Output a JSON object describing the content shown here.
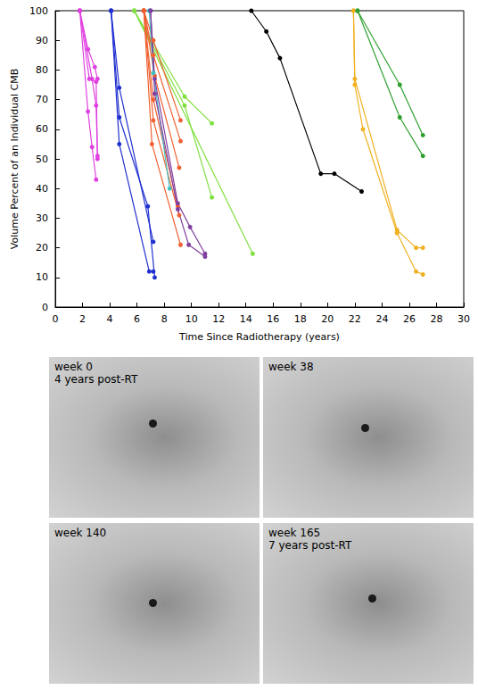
{
  "chart_data": {
    "type": "line",
    "x_label": "Time Since Radiotherapy (years)",
    "y_label": "Volume Percent of an Individual CMB",
    "xlim": [
      0,
      30
    ],
    "xticks": [
      0,
      2,
      4,
      6,
      8,
      10,
      12,
      14,
      16,
      18,
      20,
      22,
      24,
      26,
      28,
      30
    ],
    "ylim": [
      0,
      100
    ],
    "yticks": [
      0,
      10,
      20,
      30,
      40,
      50,
      60,
      70,
      80,
      90,
      100
    ],
    "grid": false,
    "marker": "circle",
    "series": [
      {
        "color": "#e040e0",
        "x": [
          1.8,
          2.4,
          2.9,
          3.1
        ],
        "values": [
          100,
          87,
          81,
          77
        ]
      },
      {
        "color": "#e040e0",
        "x": [
          1.8,
          2.5,
          3.0,
          3.1
        ],
        "values": [
          100,
          77,
          76,
          51
        ]
      },
      {
        "color": "#e040e0",
        "x": [
          1.8,
          2.4,
          2.7,
          3.0
        ],
        "values": [
          100,
          66,
          54,
          43
        ]
      },
      {
        "color": "#e040e0",
        "x": [
          1.8,
          2.7,
          3.0,
          3.1
        ],
        "values": [
          100,
          77,
          68,
          50
        ]
      },
      {
        "color": "#2030d0",
        "x": [
          4.1,
          4.7,
          7.2
        ],
        "values": [
          100,
          74,
          22
        ]
      },
      {
        "color": "#2030d0",
        "x": [
          4.1,
          4.7,
          6.8,
          7.3
        ],
        "values": [
          100,
          64,
          34,
          10
        ]
      },
      {
        "color": "#2030d0",
        "x": [
          4.1,
          4.7,
          6.9,
          7.2
        ],
        "values": [
          100,
          55,
          12,
          12
        ]
      },
      {
        "color": "#80e040",
        "x": [
          5.8,
          9.5,
          11.5
        ],
        "values": [
          100,
          71,
          62
        ]
      },
      {
        "color": "#80e040",
        "x": [
          5.8,
          9.5,
          11.5
        ],
        "values": [
          100,
          68,
          37
        ]
      },
      {
        "color": "#80e040",
        "x": [
          5.8,
          14.5
        ],
        "values": [
          100,
          18
        ]
      },
      {
        "color": "#f06030",
        "x": [
          6.5,
          7.2,
          9.2
        ],
        "values": [
          100,
          90,
          63
        ]
      },
      {
        "color": "#f06030",
        "x": [
          6.5,
          7.2,
          9.2
        ],
        "values": [
          100,
          85,
          56
        ]
      },
      {
        "color": "#f06030",
        "x": [
          6.5,
          7.3,
          9.1
        ],
        "values": [
          100,
          78,
          47
        ]
      },
      {
        "color": "#f06030",
        "x": [
          6.5,
          7.2,
          9.0
        ],
        "values": [
          100,
          70,
          34
        ]
      },
      {
        "color": "#f06030",
        "x": [
          6.5,
          7.2,
          9.1
        ],
        "values": [
          100,
          63,
          31
        ]
      },
      {
        "color": "#f06030",
        "x": [
          6.5,
          7.1,
          9.2
        ],
        "values": [
          100,
          55,
          21
        ]
      },
      {
        "color": "#40c0c0",
        "x": [
          6.9,
          7.2,
          8.4
        ],
        "values": [
          100,
          79,
          40
        ]
      },
      {
        "color": "#8040a0",
        "x": [
          7.0,
          7.3,
          9.0,
          9.9,
          11.0
        ],
        "values": [
          100,
          77,
          35,
          27,
          18
        ]
      },
      {
        "color": "#8040a0",
        "x": [
          7.0,
          7.3,
          9.0,
          9.8,
          11.0
        ],
        "values": [
          100,
          72,
          33,
          21,
          17
        ]
      },
      {
        "color": "#000000",
        "x": [
          14.4,
          15.5,
          16.5,
          19.5,
          20.5,
          22.5
        ],
        "values": [
          100,
          93,
          84,
          45,
          45,
          39
        ]
      },
      {
        "color": "#f0b020",
        "x": [
          21.9,
          22.0,
          25.1,
          26.5,
          27.0
        ],
        "values": [
          100,
          77,
          26,
          20,
          20
        ]
      },
      {
        "color": "#f0b020",
        "x": [
          21.9,
          22.0,
          22.6,
          25.1,
          26.5,
          27.0
        ],
        "values": [
          100,
          75,
          60,
          25,
          12,
          11
        ]
      },
      {
        "color": "#30a030",
        "x": [
          22.2,
          25.3,
          27.0
        ],
        "values": [
          100,
          75,
          58
        ]
      },
      {
        "color": "#30a030",
        "x": [
          22.2,
          25.3,
          27.0
        ],
        "values": [
          100,
          64,
          51
        ]
      }
    ]
  },
  "panels": [
    {
      "lines": [
        "week 0",
        "4 years post-RT"
      ]
    },
    {
      "lines": [
        "week 38"
      ]
    },
    {
      "lines": [
        "week 140"
      ]
    },
    {
      "lines": [
        "week 165",
        "7 years post-RT"
      ]
    }
  ]
}
